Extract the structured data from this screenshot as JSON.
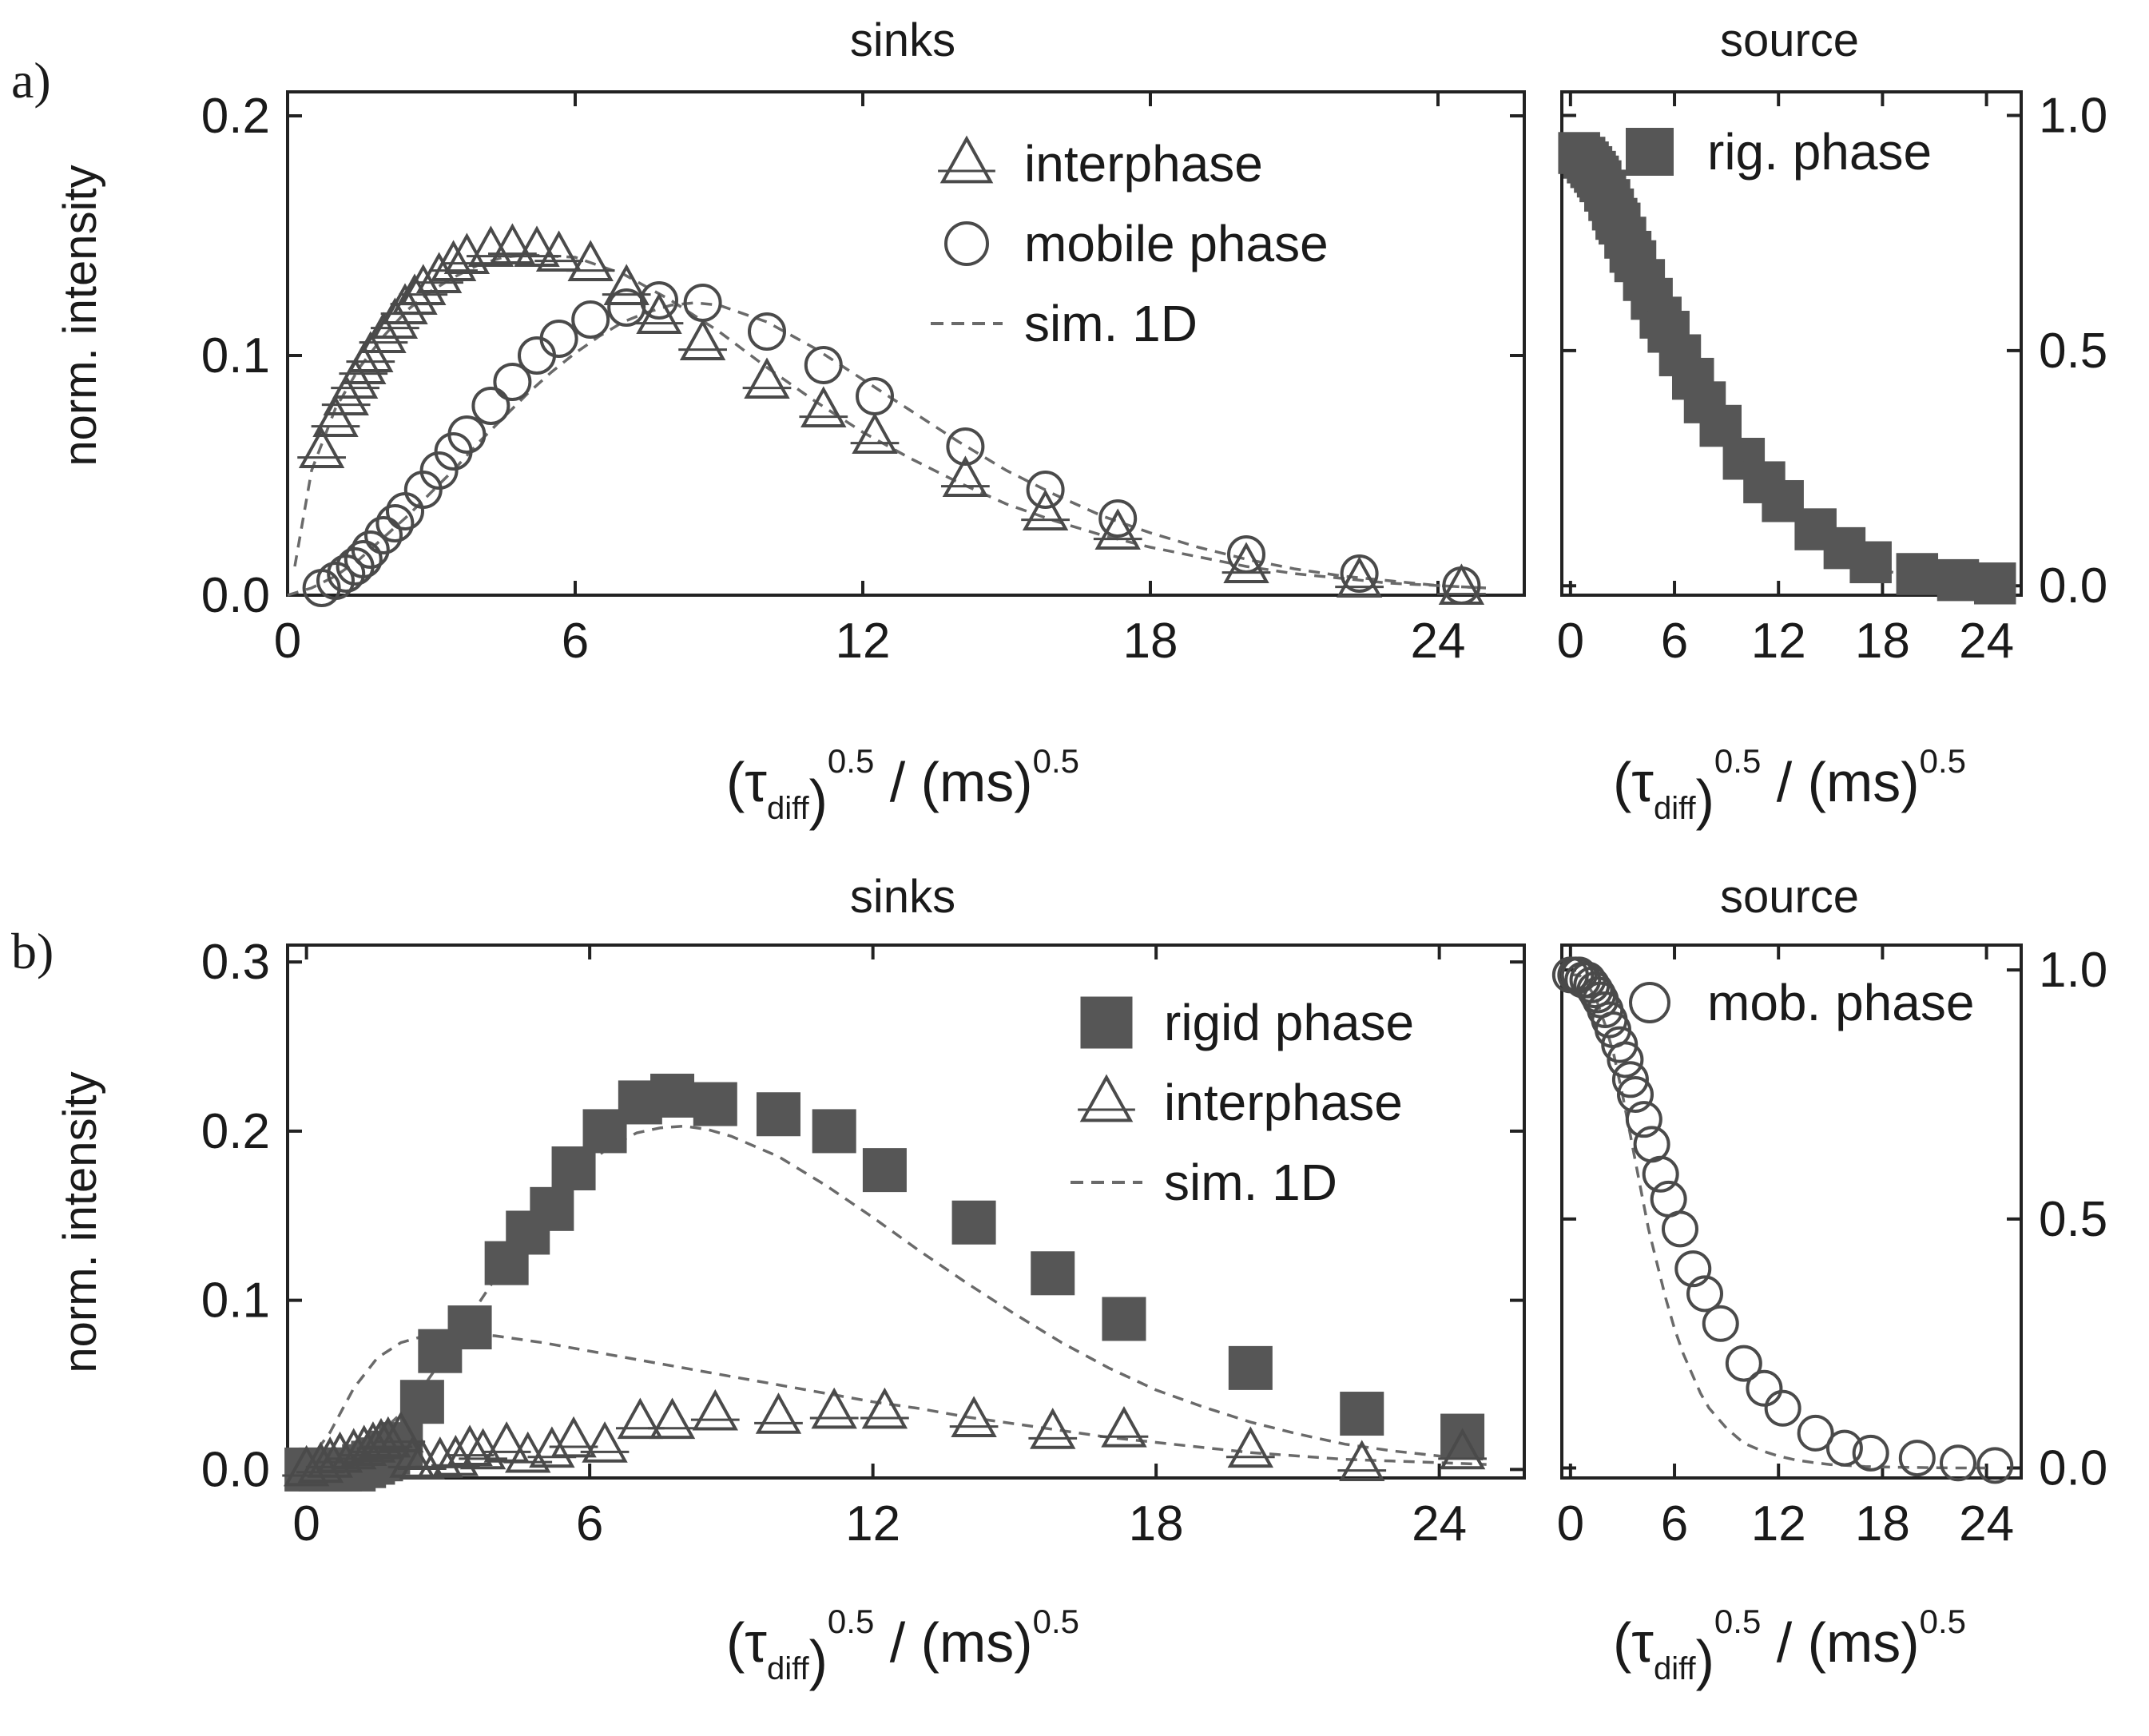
{
  "chart_data": [
    {
      "id": "a-sinks",
      "panel_label": "a)",
      "type": "scatter",
      "title": "sinks",
      "xlabel": {
        "base": "(τ",
        "sub": "diff",
        "sup1": "0.5",
        "mid": " / (ms)",
        "sup2": "0.5"
      },
      "ylabel": "norm. intensity",
      "xlim": [
        0,
        25.8
      ],
      "ylim": [
        0,
        0.21
      ],
      "xticks": [
        "0",
        "6",
        "12",
        "18",
        "24"
      ],
      "xtick_values": [
        0,
        6,
        12,
        18,
        24
      ],
      "yticks": [
        "0.0",
        "0.1",
        "0.2"
      ],
      "ytick_values": [
        0,
        0.1,
        0.2
      ],
      "yaxis_side": "left",
      "legend": [
        {
          "label": "interphase",
          "marker": "triangle"
        },
        {
          "label": "mobile phase",
          "marker": "circle"
        },
        {
          "label": "sim. 1D",
          "marker": "dash"
        }
      ],
      "series": [
        {
          "name": "interphase",
          "marker": "triangle",
          "x": [
            0.71,
            1.0,
            1.22,
            1.41,
            1.58,
            1.73,
            2.0,
            2.24,
            2.45,
            2.65,
            2.83,
            3.16,
            3.46,
            3.74,
            4.24,
            4.69,
            5.2,
            5.66,
            6.32,
            7.07,
            7.75,
            8.66,
            10.0,
            11.18,
            12.25,
            14.14,
            15.81,
            17.32,
            20.0,
            22.36,
            24.49
          ],
          "values": [
            0.06,
            0.073,
            0.082,
            0.089,
            0.095,
            0.1,
            0.108,
            0.114,
            0.12,
            0.124,
            0.128,
            0.133,
            0.138,
            0.141,
            0.144,
            0.145,
            0.144,
            0.142,
            0.138,
            0.128,
            0.116,
            0.105,
            0.089,
            0.077,
            0.066,
            0.048,
            0.034,
            0.026,
            0.012,
            0.006,
            0.003
          ]
        },
        {
          "name": "mobile phase",
          "marker": "circle",
          "x": [
            0.71,
            1.0,
            1.22,
            1.41,
            1.58,
            1.73,
            2.0,
            2.24,
            2.45,
            2.83,
            3.16,
            3.46,
            3.74,
            4.24,
            4.69,
            5.2,
            5.66,
            6.32,
            7.07,
            7.75,
            8.66,
            10.0,
            11.18,
            12.25,
            14.14,
            15.81,
            17.32,
            20.0,
            22.36,
            24.49
          ],
          "values": [
            0.003,
            0.006,
            0.009,
            0.012,
            0.015,
            0.019,
            0.025,
            0.03,
            0.035,
            0.044,
            0.052,
            0.06,
            0.067,
            0.079,
            0.089,
            0.1,
            0.107,
            0.115,
            0.12,
            0.123,
            0.122,
            0.11,
            0.096,
            0.083,
            0.062,
            0.044,
            0.032,
            0.017,
            0.009,
            0.004
          ]
        }
      ],
      "sim_curves": [
        {
          "x": [
            0.15,
            0.5,
            1,
            1.5,
            2,
            2.5,
            3,
            3.5,
            4,
            4.5,
            5,
            6,
            7,
            8,
            9,
            10,
            11,
            12,
            13,
            14,
            15,
            16,
            17,
            18,
            19,
            20,
            21,
            22,
            23,
            24,
            25
          ],
          "values": [
            0.012,
            0.052,
            0.078,
            0.095,
            0.108,
            0.119,
            0.127,
            0.133,
            0.138,
            0.141,
            0.142,
            0.141,
            0.134,
            0.123,
            0.11,
            0.095,
            0.081,
            0.068,
            0.057,
            0.047,
            0.038,
            0.031,
            0.025,
            0.02,
            0.016,
            0.012,
            0.009,
            0.007,
            0.005,
            0.004,
            0.003
          ]
        },
        {
          "x": [
            0,
            0.5,
            1,
            1.5,
            2,
            2.5,
            3,
            3.5,
            4,
            4.5,
            5,
            5.5,
            6,
            6.5,
            7,
            7.5,
            8,
            8.5,
            9,
            10,
            11,
            12,
            13,
            14,
            15,
            16,
            17,
            18,
            19,
            20,
            21,
            22,
            23,
            24,
            25
          ],
          "values": [
            0,
            0.003,
            0.008,
            0.015,
            0.024,
            0.033,
            0.043,
            0.053,
            0.064,
            0.074,
            0.084,
            0.093,
            0.101,
            0.108,
            0.114,
            0.118,
            0.121,
            0.122,
            0.121,
            0.114,
            0.103,
            0.09,
            0.077,
            0.064,
            0.052,
            0.042,
            0.033,
            0.026,
            0.02,
            0.015,
            0.011,
            0.008,
            0.006,
            0.004,
            0.003
          ]
        }
      ]
    },
    {
      "id": "a-source",
      "type": "scatter",
      "title": "source",
      "xlabel": {
        "base": "(τ",
        "sub": "diff",
        "sup1": "0.5",
        "mid": " / (ms)",
        "sup2": "0.5"
      },
      "xlim": [
        -0.5,
        26
      ],
      "ylim": [
        -0.02,
        1.05
      ],
      "xticks": [
        "0",
        "6",
        "12",
        "18",
        "24"
      ],
      "xtick_values": [
        0,
        6,
        12,
        18,
        24
      ],
      "yticks": [
        "0.0",
        "0.5",
        "1.0"
      ],
      "ytick_values": [
        0,
        0.5,
        1.0
      ],
      "yaxis_side": "right",
      "legend": [
        {
          "label": "rig. phase",
          "marker": "square"
        }
      ],
      "series": [
        {
          "name": "rig. phase",
          "marker": "square",
          "x": [
            0.5,
            0.8,
            1.0,
            1.2,
            1.41,
            1.58,
            1.73,
            2.0,
            2.24,
            2.45,
            2.65,
            2.83,
            3.16,
            3.46,
            3.74,
            4.24,
            4.69,
            5.2,
            5.66,
            6.32,
            7.07,
            7.75,
            8.66,
            10.0,
            11.18,
            12.25,
            14.14,
            15.81,
            17.32,
            20.0,
            22.36,
            24.49
          ],
          "values": [
            0.92,
            0.91,
            0.9,
            0.89,
            0.88,
            0.87,
            0.86,
            0.84,
            0.82,
            0.8,
            0.78,
            0.77,
            0.74,
            0.71,
            0.69,
            0.65,
            0.61,
            0.57,
            0.54,
            0.49,
            0.44,
            0.39,
            0.34,
            0.27,
            0.22,
            0.18,
            0.12,
            0.08,
            0.05,
            0.025,
            0.012,
            0.005
          ]
        }
      ],
      "sim_curves": [
        {
          "x": [
            0,
            1,
            2,
            3,
            4,
            5,
            6,
            7,
            8,
            9,
            10,
            11,
            12,
            13,
            14,
            15,
            16,
            17,
            18,
            20,
            22,
            24,
            25
          ],
          "values": [
            0.92,
            0.9,
            0.85,
            0.78,
            0.7,
            0.62,
            0.54,
            0.46,
            0.39,
            0.33,
            0.27,
            0.22,
            0.18,
            0.14,
            0.11,
            0.08,
            0.06,
            0.045,
            0.033,
            0.018,
            0.01,
            0.005,
            0.004
          ]
        }
      ]
    },
    {
      "id": "b-sinks",
      "panel_label": "b)",
      "type": "scatter",
      "title": "sinks",
      "xlabel": {
        "base": "(τ",
        "sub": "diff",
        "sup1": "0.5",
        "mid": " / (ms)",
        "sup2": "0.5"
      },
      "ylabel": "norm. intensity",
      "xlim": [
        -0.4,
        25.8
      ],
      "ylim": [
        -0.005,
        0.31
      ],
      "xticks": [
        "0",
        "6",
        "12",
        "18",
        "24"
      ],
      "xtick_values": [
        0,
        6,
        12,
        18,
        24
      ],
      "yticks": [
        "0.0",
        "0.1",
        "0.2",
        "0.3"
      ],
      "ytick_values": [
        0,
        0.1,
        0.2,
        0.3
      ],
      "yaxis_side": "left",
      "legend": [
        {
          "label": "rigid phase",
          "marker": "square"
        },
        {
          "label": "interphase",
          "marker": "triangle"
        },
        {
          "label": "sim. 1D",
          "marker": "dash"
        }
      ],
      "series": [
        {
          "name": "rigid phase",
          "marker": "square",
          "x": [
            0.0,
            0.3,
            0.5,
            0.71,
            1.0,
            1.22,
            1.41,
            1.58,
            1.73,
            2.0,
            2.45,
            2.83,
            3.46,
            4.24,
            4.69,
            5.2,
            5.66,
            6.32,
            7.07,
            7.75,
            8.66,
            10.0,
            11.18,
            12.25,
            14.14,
            15.81,
            17.32,
            20.0,
            22.36,
            24.49
          ],
          "values": [
            0.0,
            0.0,
            0.0,
            0.0,
            0.0,
            0.002,
            0.004,
            0.006,
            0.01,
            0.015,
            0.04,
            0.07,
            0.084,
            0.122,
            0.14,
            0.154,
            0.178,
            0.2,
            0.217,
            0.221,
            0.216,
            0.21,
            0.2,
            0.177,
            0.146,
            0.116,
            0.089,
            0.06,
            0.033,
            0.02
          ]
        },
        {
          "name": "interphase",
          "marker": "triangle",
          "x": [
            0.0,
            0.3,
            0.5,
            0.71,
            1.0,
            1.22,
            1.41,
            1.58,
            1.73,
            2.0,
            2.24,
            2.45,
            2.83,
            3.16,
            3.46,
            3.74,
            4.24,
            4.69,
            5.2,
            5.66,
            6.32,
            7.07,
            7.75,
            8.66,
            10.0,
            11.18,
            12.25,
            14.14,
            15.81,
            17.32,
            20.0,
            22.36,
            24.49
          ],
          "values": [
            0.0,
            0.002,
            0.005,
            0.008,
            0.01,
            0.012,
            0.014,
            0.016,
            0.017,
            0.02,
            0.005,
            0.004,
            0.005,
            0.006,
            0.012,
            0.01,
            0.014,
            0.008,
            0.011,
            0.017,
            0.014,
            0.028,
            0.028,
            0.033,
            0.031,
            0.034,
            0.034,
            0.029,
            0.022,
            0.023,
            0.011,
            0.003,
            0.01
          ]
        }
      ],
      "sim_curves": [
        {
          "x": [
            0,
            0.5,
            1,
            1.5,
            2,
            2.5,
            3,
            3.5,
            4,
            5,
            6,
            7,
            8,
            9,
            10,
            11,
            12,
            13,
            14,
            15,
            16,
            17,
            18,
            19,
            20,
            21,
            22,
            23,
            24,
            25
          ],
          "values": [
            0.003,
            0.022,
            0.048,
            0.066,
            0.075,
            0.079,
            0.08,
            0.08,
            0.079,
            0.075,
            0.07,
            0.065,
            0.06,
            0.055,
            0.05,
            0.045,
            0.04,
            0.036,
            0.031,
            0.027,
            0.023,
            0.019,
            0.016,
            0.013,
            0.01,
            0.008,
            0.006,
            0.005,
            0.004,
            0.003
          ]
        },
        {
          "x": [
            0,
            0.5,
            1,
            1.5,
            2,
            2.5,
            3,
            3.5,
            4,
            4.5,
            5,
            5.5,
            6,
            6.5,
            7,
            7.5,
            8,
            8.5,
            9,
            10,
            11,
            12,
            13,
            14,
            15,
            16,
            17,
            18,
            19,
            20,
            21,
            22,
            23,
            24,
            25
          ],
          "values": [
            0,
            0.003,
            0.01,
            0.02,
            0.033,
            0.05,
            0.07,
            0.092,
            0.113,
            0.133,
            0.152,
            0.168,
            0.182,
            0.192,
            0.199,
            0.202,
            0.203,
            0.201,
            0.197,
            0.185,
            0.168,
            0.149,
            0.129,
            0.11,
            0.092,
            0.075,
            0.06,
            0.047,
            0.037,
            0.028,
            0.021,
            0.015,
            0.011,
            0.008,
            0.006
          ]
        }
      ]
    },
    {
      "id": "b-source",
      "type": "scatter",
      "title": "source",
      "xlabel": {
        "base": "(τ",
        "sub": "diff",
        "sup1": "0.5",
        "mid": " / (ms)",
        "sup2": "0.5"
      },
      "xlim": [
        -0.5,
        26
      ],
      "ylim": [
        -0.02,
        1.05
      ],
      "xticks": [
        "0",
        "6",
        "12",
        "18",
        "24"
      ],
      "xtick_values": [
        0,
        6,
        12,
        18,
        24
      ],
      "yticks": [
        "0.0",
        "0.5",
        "1.0"
      ],
      "ytick_values": [
        0,
        0.5,
        1.0
      ],
      "yaxis_side": "right",
      "legend": [
        {
          "label": "mob. phase",
          "marker": "circle"
        }
      ],
      "series": [
        {
          "name": "mob. phase",
          "marker": "circle",
          "x": [
            0.0,
            0.3,
            0.5,
            0.71,
            1.0,
            1.22,
            1.41,
            1.58,
            1.73,
            2.0,
            2.24,
            2.45,
            2.83,
            3.16,
            3.46,
            3.74,
            4.24,
            4.69,
            5.2,
            5.66,
            6.32,
            7.07,
            7.75,
            8.66,
            10.0,
            11.18,
            12.25,
            14.14,
            15.81,
            17.32,
            20.0,
            22.36,
            24.49
          ],
          "values": [
            0.99,
            0.99,
            0.99,
            0.98,
            0.98,
            0.97,
            0.96,
            0.95,
            0.94,
            0.92,
            0.9,
            0.88,
            0.85,
            0.82,
            0.78,
            0.75,
            0.7,
            0.65,
            0.59,
            0.54,
            0.48,
            0.4,
            0.35,
            0.29,
            0.21,
            0.16,
            0.12,
            0.07,
            0.04,
            0.03,
            0.02,
            0.01,
            0.005
          ]
        }
      ],
      "sim_curves": [
        {
          "x": [
            0,
            0.5,
            1,
            1.5,
            2,
            2.5,
            3,
            3.5,
            4,
            4.5,
            5,
            5.5,
            6,
            6.5,
            7,
            7.5,
            8,
            9,
            10,
            11,
            12,
            13,
            14,
            15,
            16,
            17,
            18,
            20,
            22,
            24
          ],
          "values": [
            0.99,
            0.99,
            0.97,
            0.94,
            0.89,
            0.83,
            0.75,
            0.66,
            0.57,
            0.48,
            0.41,
            0.34,
            0.28,
            0.23,
            0.19,
            0.15,
            0.12,
            0.08,
            0.05,
            0.035,
            0.024,
            0.016,
            0.011,
            0.007,
            0.005,
            0.003,
            0.002,
            0.001,
            0.0,
            0.0
          ]
        }
      ]
    }
  ]
}
